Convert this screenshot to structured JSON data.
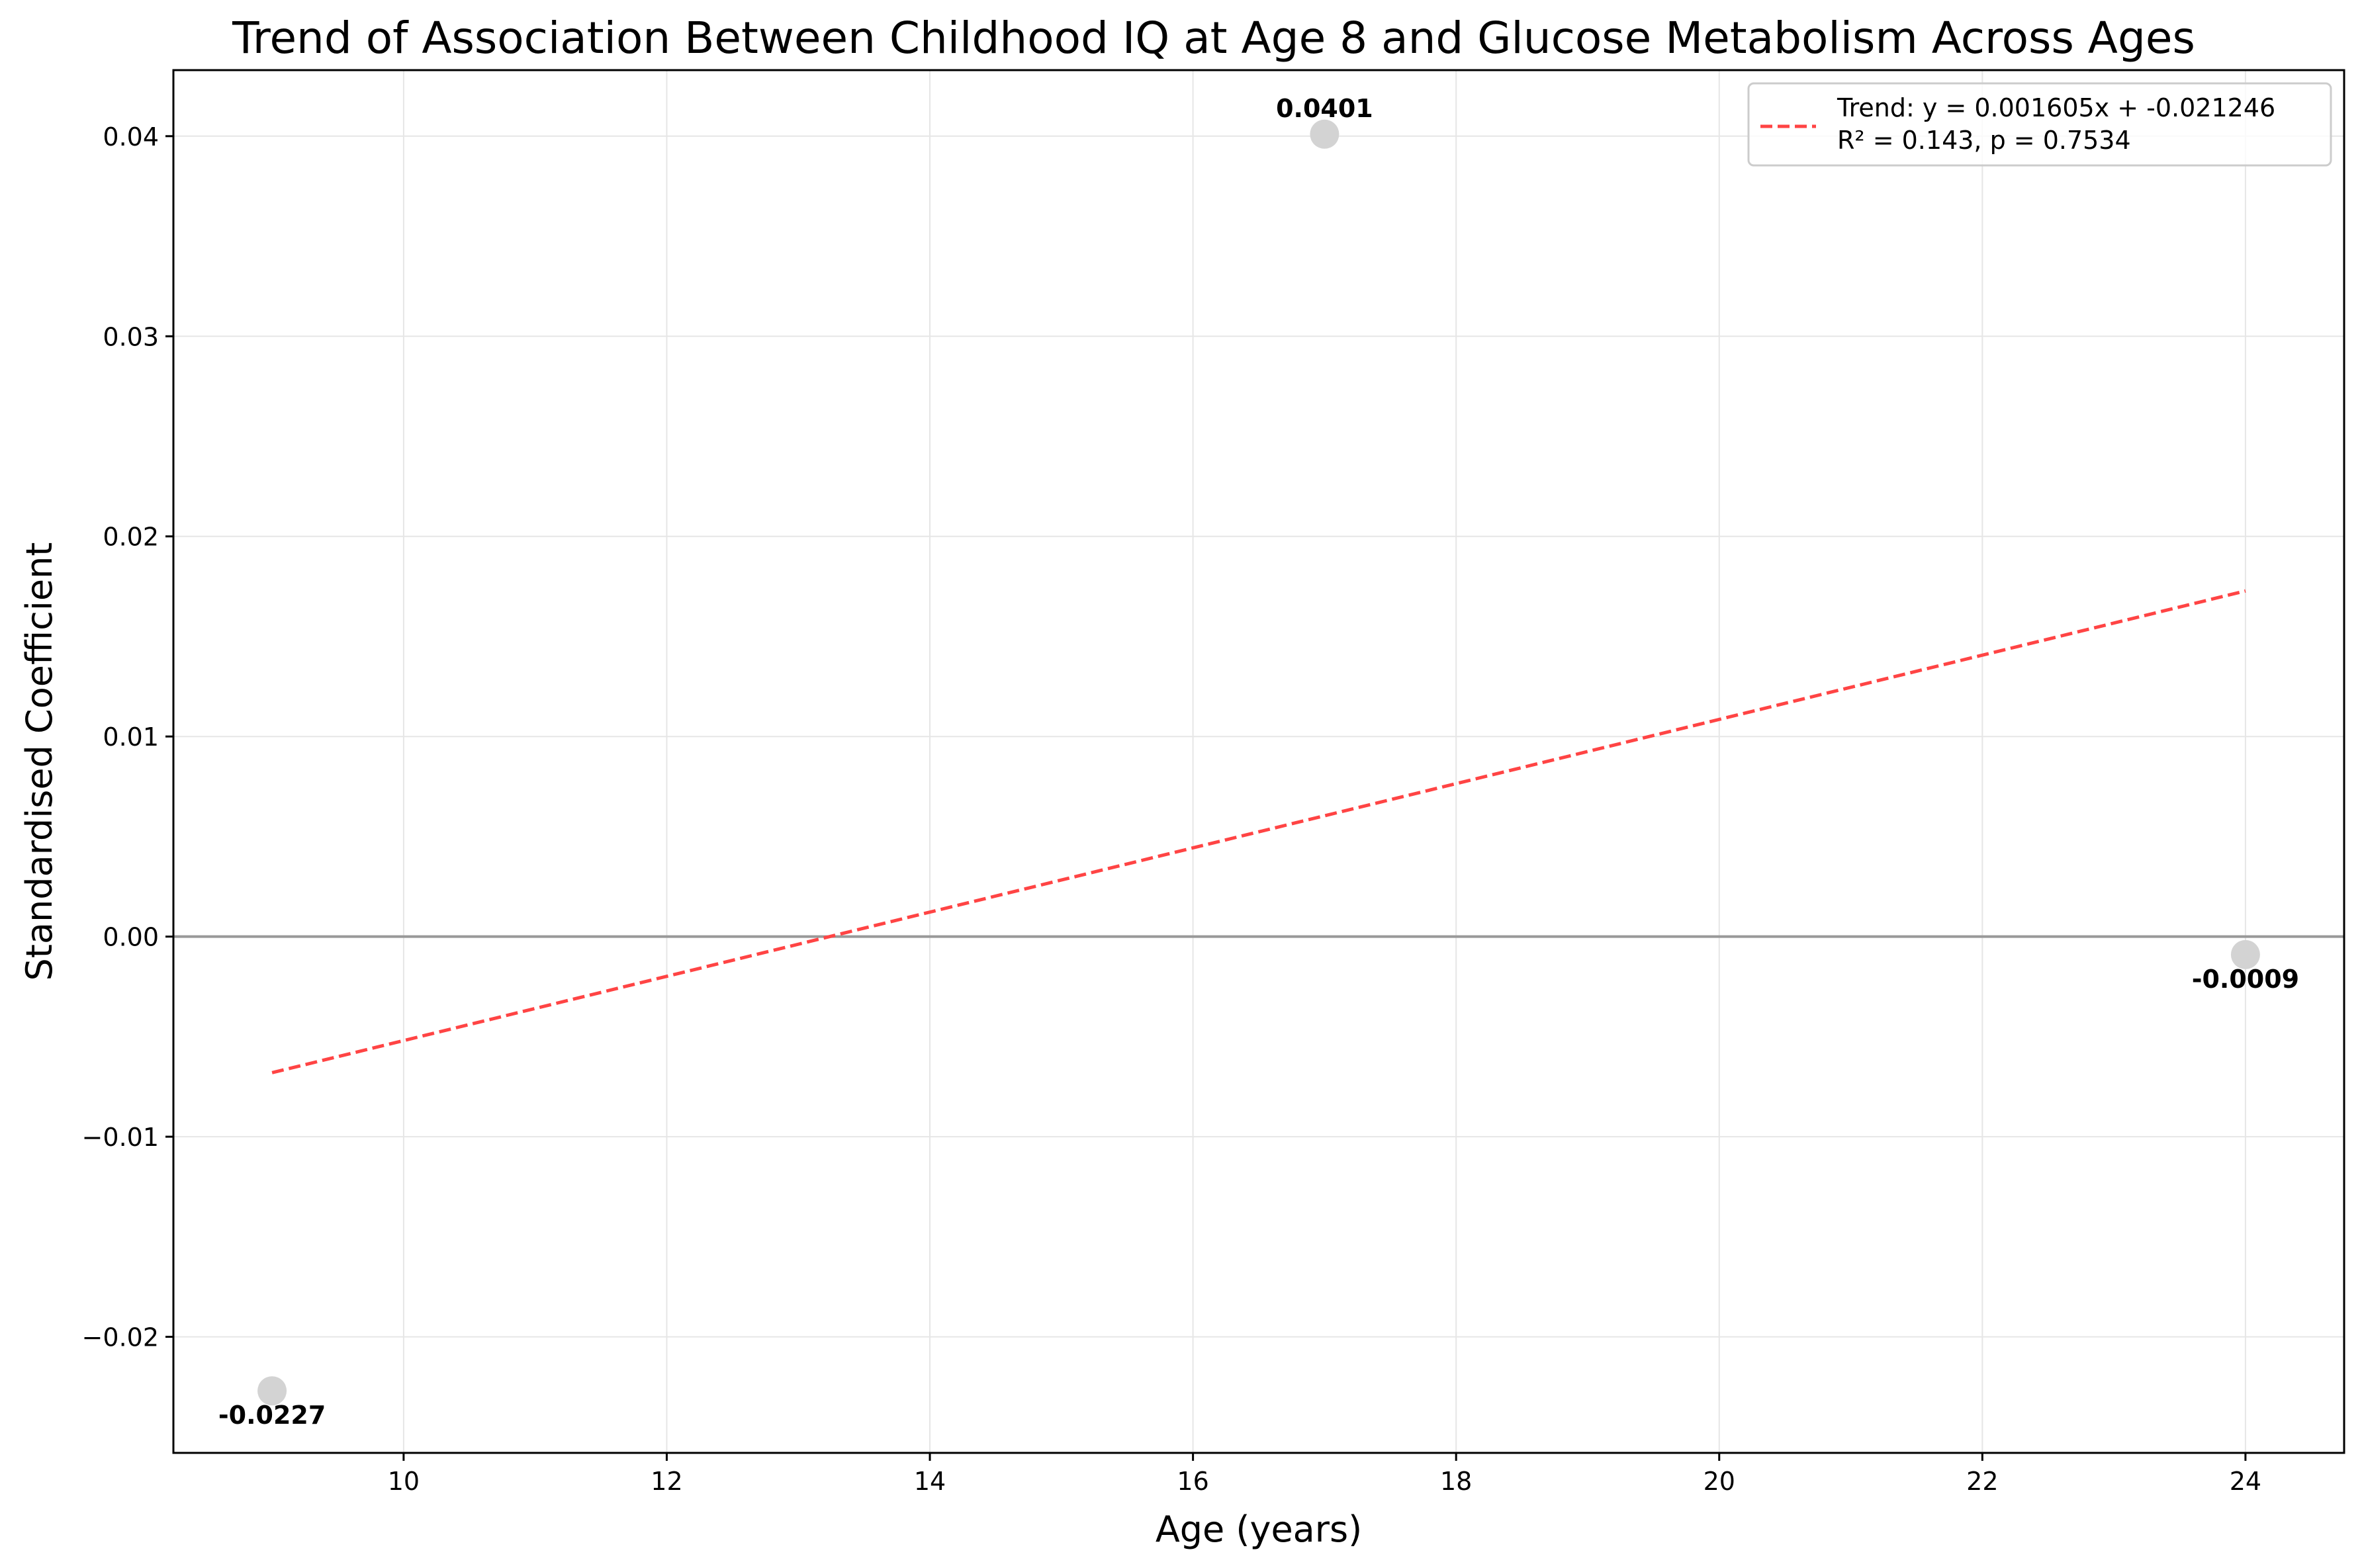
{
  "chart_data": {
    "type": "scatter",
    "title": "Trend of Association Between Childhood IQ at Age 8 and Glucose Metabolism Across Ages",
    "xlabel": "Age (years)",
    "ylabel": "Standardised Coefficient",
    "xlim": [
      8.25,
      24.75
    ],
    "ylim": [
      -0.0258,
      0.0433
    ],
    "x_ticks": [
      10,
      12,
      14,
      16,
      18,
      20,
      22,
      24
    ],
    "y_ticks": [
      -0.02,
      -0.01,
      0.0,
      0.01,
      0.02,
      0.03,
      0.04
    ],
    "x_tick_labels": [
      "10",
      "12",
      "14",
      "16",
      "18",
      "20",
      "22",
      "24"
    ],
    "y_tick_labels": [
      "−0.02",
      "−0.01",
      "0.00",
      "0.01",
      "0.02",
      "0.03",
      "0.04"
    ],
    "grid": true,
    "legend_position": "top-right",
    "points": [
      {
        "x": 9,
        "y": -0.0227,
        "label": "-0.0227"
      },
      {
        "x": 17,
        "y": 0.0401,
        "label": "0.0401"
      },
      {
        "x": 24,
        "y": -0.0009,
        "label": "-0.0009"
      }
    ],
    "point_color": "#d3d3d3",
    "reference_line": {
      "y": 0,
      "color": "#999999"
    },
    "trend_line": {
      "slope": 0.001605,
      "intercept": -0.021246,
      "x_range": [
        9,
        24
      ],
      "color": "#ff4444",
      "style": "dashed",
      "legend_line1": "Trend: y = 0.001605x + -0.021246",
      "legend_line2": "R² = 0.143, p = 0.7534"
    }
  }
}
